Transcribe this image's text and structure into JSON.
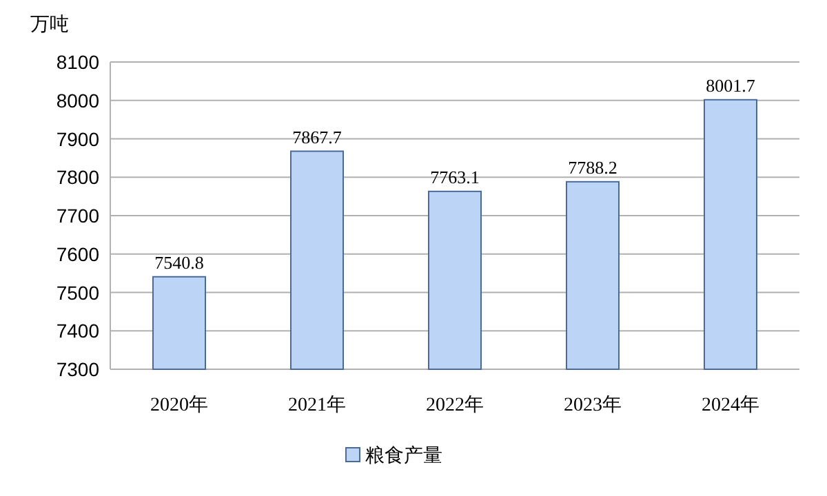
{
  "chart_data": {
    "type": "bar",
    "ylabel": "万吨",
    "categories": [
      "2020年",
      "2021年",
      "2022年",
      "2023年",
      "2024年"
    ],
    "series": [
      {
        "name": "粮食产量",
        "color": "#bcd4f6",
        "values": [
          7540.8,
          7867.7,
          7763.1,
          7788.2,
          8001.7
        ]
      }
    ],
    "ylim": [
      7300,
      8100
    ],
    "yticks": [
      7300,
      7400,
      7500,
      7600,
      7700,
      7800,
      7900,
      8000,
      8100
    ],
    "grid": "y",
    "legend": "bottom",
    "data_labels": true
  }
}
